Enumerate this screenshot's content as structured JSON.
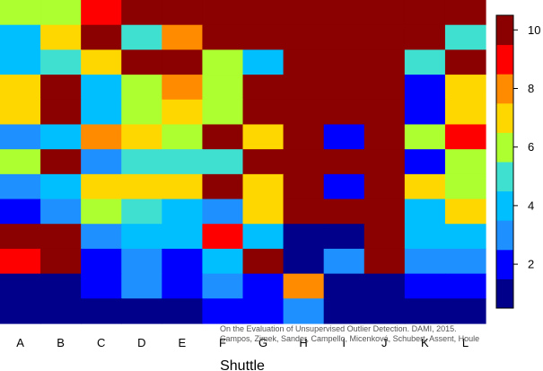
{
  "chart_data": {
    "type": "heatmap",
    "xlabel": "Shuttle",
    "categories": [
      "A",
      "B",
      "C",
      "D",
      "E",
      "F",
      "G",
      "H",
      "I",
      "J",
      "K",
      "L"
    ],
    "rows_top_to_bottom": [
      [
        6,
        6,
        9,
        10,
        10,
        10,
        10,
        10,
        10,
        10,
        10,
        10
      ],
      [
        4,
        7,
        10,
        5,
        8,
        10,
        10,
        10,
        10,
        10,
        10,
        5
      ],
      [
        4,
        5,
        7,
        10,
        10,
        6,
        4,
        10,
        10,
        10,
        5,
        10
      ],
      [
        7,
        10,
        4,
        6,
        8,
        6,
        10,
        10,
        10,
        10,
        2,
        7
      ],
      [
        7,
        10,
        4,
        6,
        7,
        6,
        10,
        10,
        10,
        10,
        2,
        7
      ],
      [
        3,
        4,
        8,
        7,
        6,
        10,
        7,
        10,
        2,
        10,
        6,
        9
      ],
      [
        6,
        10,
        3,
        5,
        5,
        5,
        10,
        10,
        10,
        10,
        2,
        6
      ],
      [
        3,
        4,
        7,
        7,
        7,
        10,
        7,
        10,
        2,
        10,
        7,
        6
      ],
      [
        2,
        3,
        6,
        5,
        4,
        3,
        7,
        10,
        10,
        10,
        4,
        7
      ],
      [
        10,
        10,
        3,
        4,
        4,
        9,
        4,
        1,
        1,
        10,
        4,
        4
      ],
      [
        9,
        10,
        2,
        3,
        2,
        4,
        10,
        1,
        3,
        10,
        3,
        3
      ],
      [
        1,
        1,
        2,
        3,
        2,
        3,
        2,
        8,
        1,
        1,
        2,
        2
      ],
      [
        1,
        1,
        1,
        1,
        1,
        2,
        2,
        3,
        1,
        1,
        1,
        1
      ]
    ],
    "colorbar_ticks": [
      2,
      4,
      6,
      8,
      10
    ],
    "value_range": [
      0.5,
      10.5
    ],
    "palette": [
      "#00008b",
      "#0000ff",
      "#1e90ff",
      "#00bfff",
      "#40e0d0",
      "#adff2f",
      "#ffd700",
      "#ff8c00",
      "#ff0000",
      "#8b0000"
    ]
  },
  "credit_line_1": "On the Evaluation of Unsupervised Outlier Detection. DAMI, 2015.",
  "credit_line_2": "Campos, Zimek, Sander, Campello, Micenková, Schubert, Assent, Houle"
}
